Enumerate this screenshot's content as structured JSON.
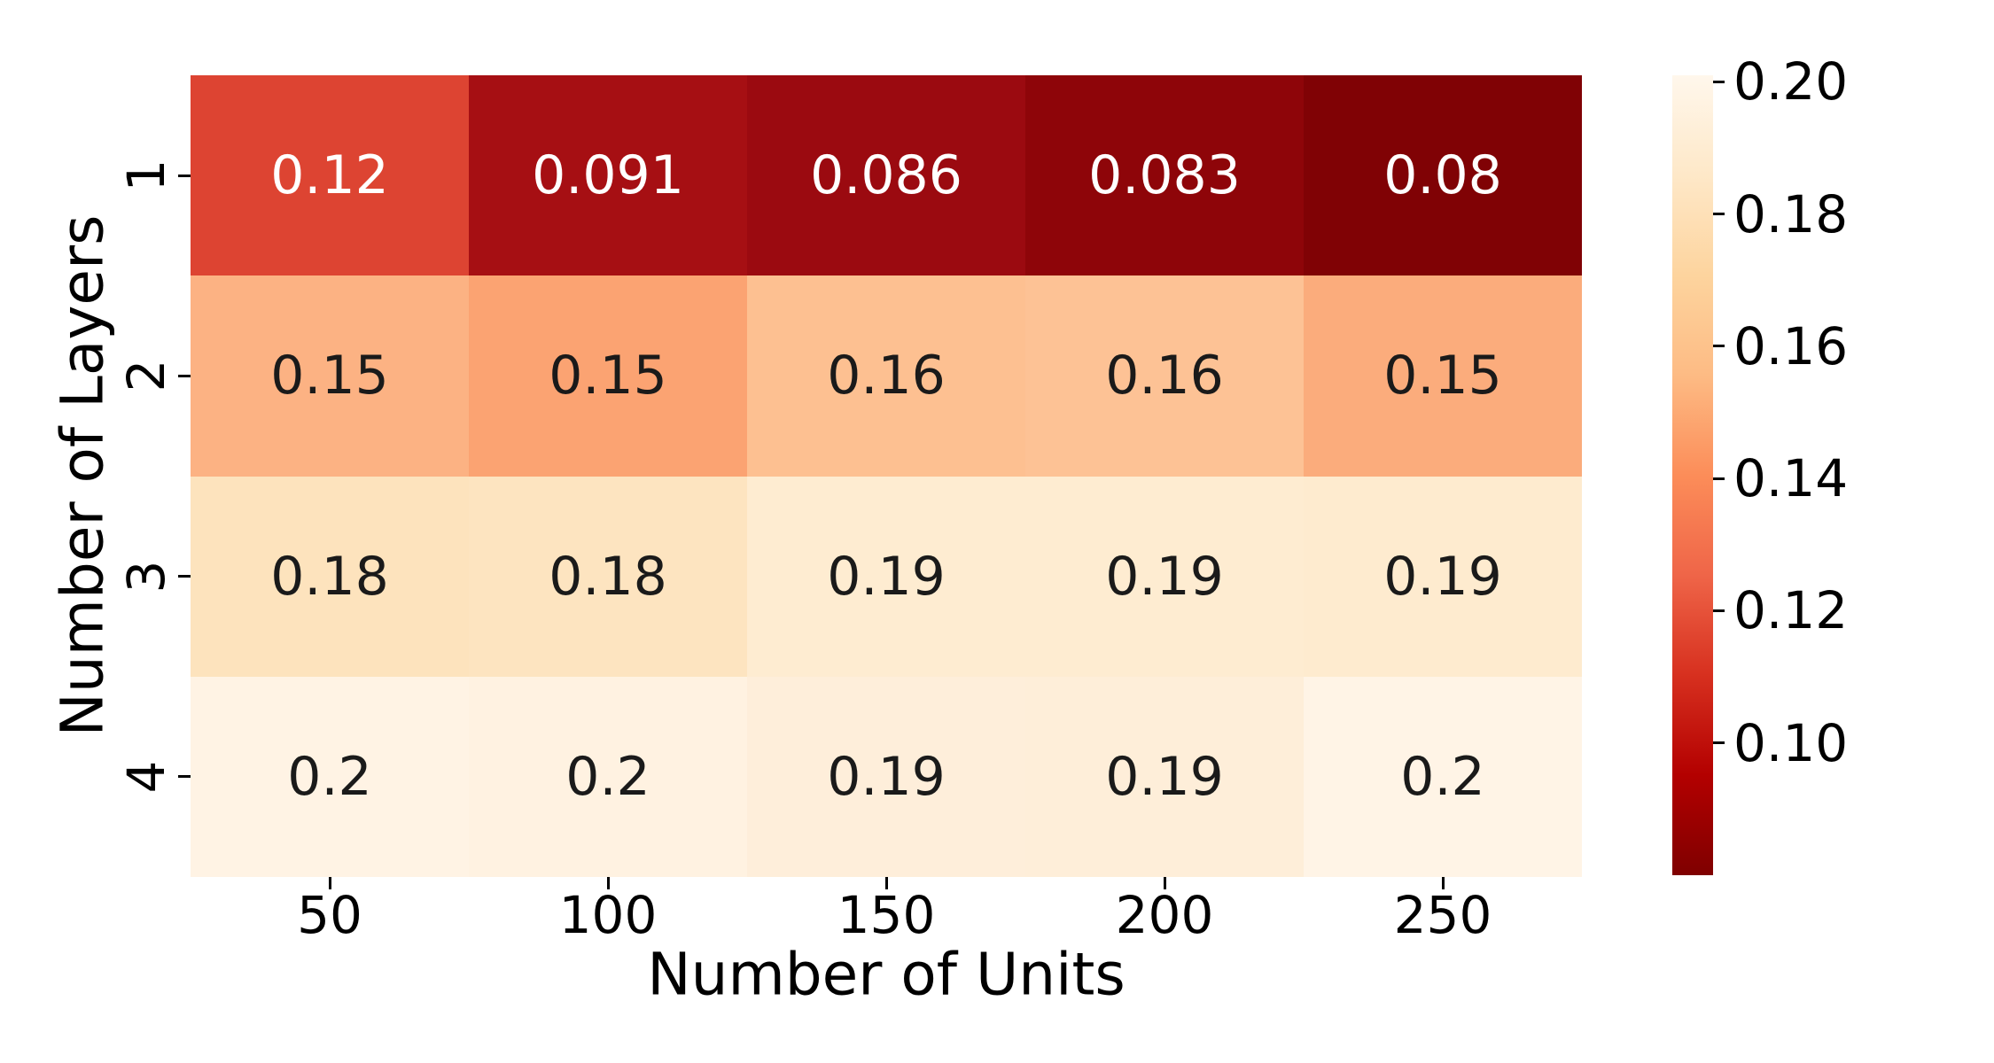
{
  "chart_data": {
    "type": "heatmap",
    "title": "",
    "xlabel": "Number of Units",
    "ylabel": "Number of Layers",
    "x_categories": [
      "50",
      "100",
      "150",
      "200",
      "250"
    ],
    "y_categories": [
      "1",
      "2",
      "3",
      "4"
    ],
    "values": [
      [
        0.12,
        0.091,
        0.086,
        0.083,
        0.08
      ],
      [
        0.15,
        0.15,
        0.16,
        0.16,
        0.15
      ],
      [
        0.18,
        0.18,
        0.19,
        0.19,
        0.19
      ],
      [
        0.2,
        0.2,
        0.19,
        0.19,
        0.2
      ]
    ],
    "cell_labels": [
      [
        "0.12",
        "0.091",
        "0.086",
        "0.083",
        "0.08"
      ],
      [
        "0.15",
        "0.15",
        "0.16",
        "0.16",
        "0.15"
      ],
      [
        "0.18",
        "0.18",
        "0.19",
        "0.19",
        "0.19"
      ],
      [
        "0.2",
        "0.2",
        "0.19",
        "0.19",
        "0.2"
      ]
    ],
    "cell_colors": [
      [
        "#dd4432",
        "#a60f13",
        "#9b0a10",
        "#8e0509",
        "#800205"
      ],
      [
        "#fcb283",
        "#fba372",
        "#fdc091",
        "#fdc295",
        "#fbac7c"
      ],
      [
        "#fde3bd",
        "#fde4c0",
        "#feecd1",
        "#feecd1",
        "#feebcf"
      ],
      [
        "#fff3e4",
        "#fff2e1",
        "#feeeda",
        "#feeed9",
        "#fff4e6"
      ]
    ],
    "cell_text_colors": [
      [
        "#ffffff",
        "#ffffff",
        "#ffffff",
        "#ffffff",
        "#ffffff"
      ],
      [
        "#1a1a1a",
        "#1a1a1a",
        "#1a1a1a",
        "#1a1a1a",
        "#1a1a1a"
      ],
      [
        "#1a1a1a",
        "#1a1a1a",
        "#1a1a1a",
        "#1a1a1a",
        "#1a1a1a"
      ],
      [
        "#1a1a1a",
        "#1a1a1a",
        "#1a1a1a",
        "#1a1a1a",
        "#1a1a1a"
      ]
    ],
    "colormap": "OrRd_r",
    "grid": false,
    "legend": "none",
    "colorbar": {
      "position": "right",
      "vmin": 0.08,
      "vmax": 0.201,
      "tick_values": [
        0.2,
        0.18,
        0.16,
        0.14,
        0.12,
        0.1
      ],
      "tick_labels": [
        "0.20",
        "0.18",
        "0.16",
        "0.14",
        "0.12",
        "0.10"
      ],
      "gradient_top_to_bottom": [
        "#fff7ec",
        "#fee8c8",
        "#fdd49e",
        "#fdbb84",
        "#fc8d59",
        "#ef6548",
        "#d7301f",
        "#b30000",
        "#7f0000"
      ]
    }
  }
}
